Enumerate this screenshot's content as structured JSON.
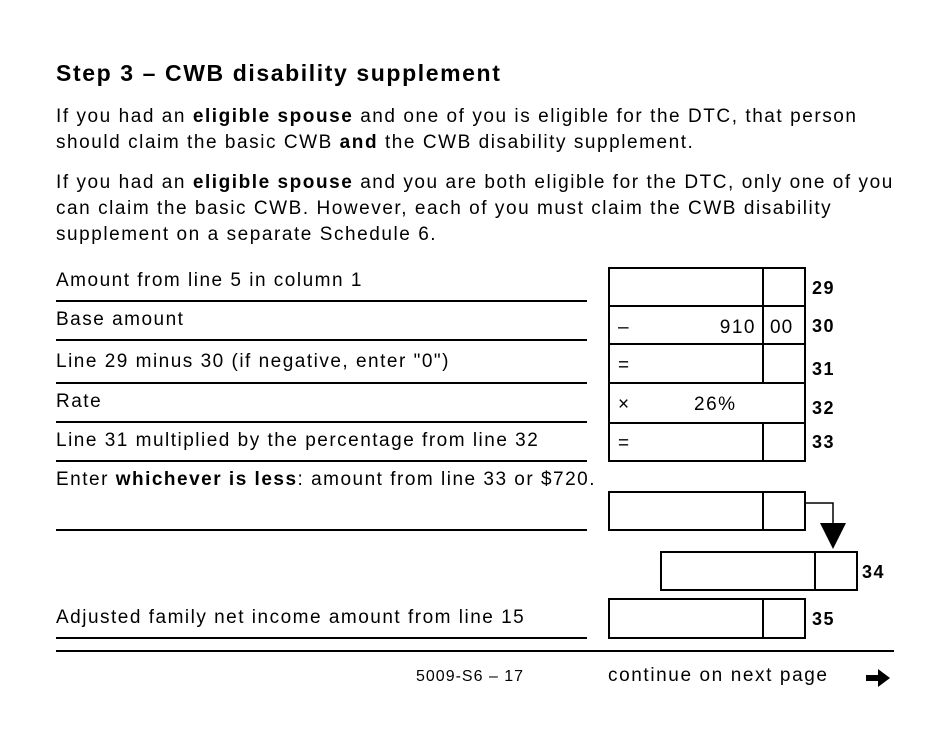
{
  "title": "Step 3 – CWB disability supplement",
  "para1": {
    "a": "If you had an ",
    "b": "eligible spouse",
    "c": " and one of you is eligible for the DTC, that person should claim the basic CWB ",
    "d": "and",
    "e": " the CWB disability supplement."
  },
  "para2": {
    "a": "If you had an ",
    "b": "eligible spouse",
    "c": " and you are both eligible for the DTC, only one of you can claim the basic CWB. However, each of you must claim the CWB disability supplement on a separate Schedule 6."
  },
  "lines": [
    {
      "label": "Amount from line 5 in column 1",
      "number": "29",
      "operator": "",
      "dollars": "",
      "cents": ""
    },
    {
      "label": "Base amount",
      "number": "30",
      "operator": "–",
      "dollars": "910",
      "cents": "00"
    },
    {
      "label": "Line 29 minus 30 (if negative, enter \"0\")",
      "number": "31",
      "operator": "=",
      "dollars": "",
      "cents": ""
    },
    {
      "label": "Rate",
      "number": "32",
      "operator": "×",
      "value": "26%"
    },
    {
      "label": "Line 31 multiplied by the percentage from line 32",
      "number": "33",
      "operator": "=",
      "dollars": "",
      "cents": ""
    },
    {
      "label_a": "Enter ",
      "label_b": "whichever is less",
      "label_c": ": amount from line 33 or $720."
    },
    {
      "number": "34"
    },
    {
      "label": "Adjusted family net income amount from line 15",
      "number": "35"
    }
  ],
  "footer": {
    "page": "5009-S6 – 17",
    "continue": "continue on next page"
  }
}
